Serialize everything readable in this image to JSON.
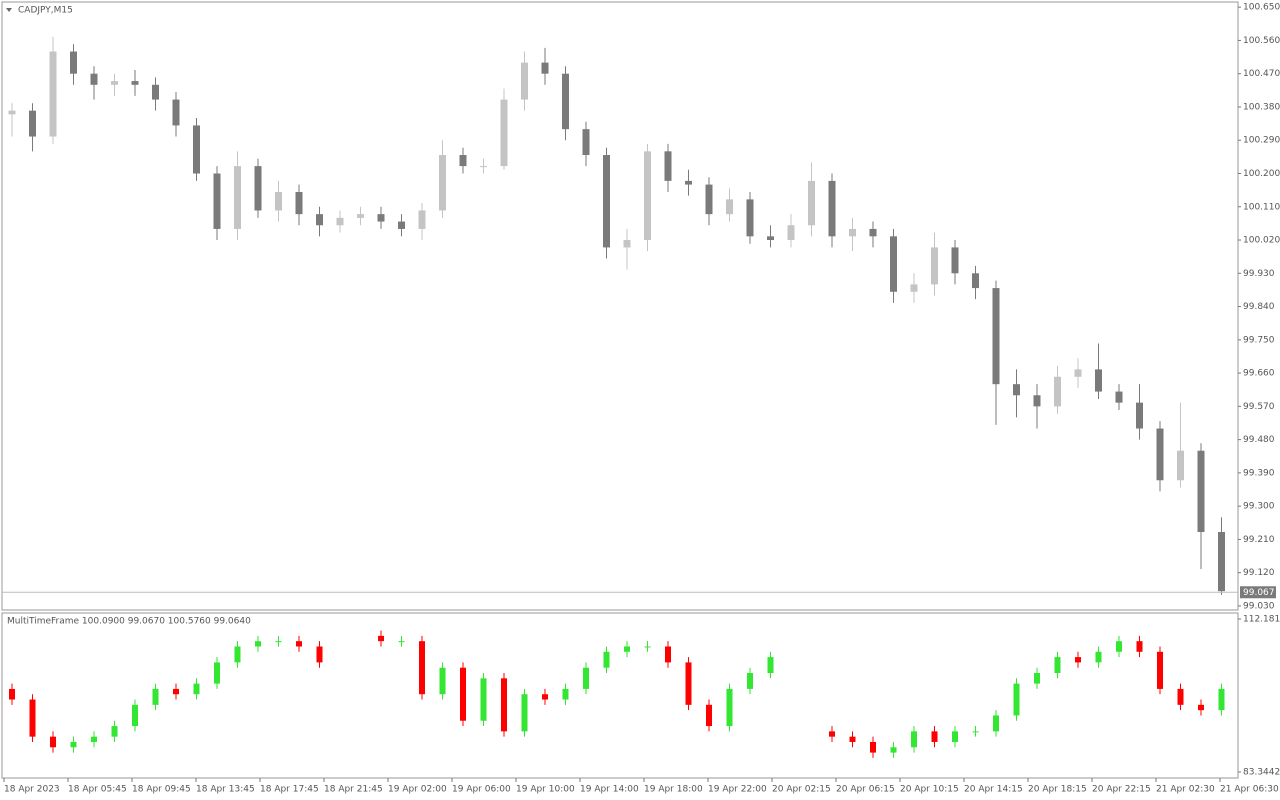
{
  "chart_data": [
    {
      "type": "candlestick",
      "title": "CADJPY,M15",
      "open": [
        100.36,
        100.37,
        100.3,
        100.53,
        100.47,
        100.44,
        100.45,
        100.44,
        100.4,
        100.33,
        100.2,
        100.05,
        100.22,
        100.1,
        100.15,
        100.09,
        100.06,
        100.08,
        100.09,
        100.07,
        100.05,
        100.1,
        100.25,
        100.22,
        100.22,
        100.4,
        100.5,
        100.47,
        100.32,
        100.25,
        100.0,
        100.02,
        100.26,
        100.18,
        100.17,
        100.09,
        100.13,
        100.03,
        100.02,
        100.06,
        100.18,
        100.03,
        100.05,
        100.03,
        99.88,
        99.9,
        100.0,
        99.93,
        99.89,
        99.63,
        99.6,
        99.57,
        99.65,
        99.67,
        99.61,
        99.58,
        99.51,
        99.37,
        99.45,
        99.23
      ],
      "high": [
        100.39,
        100.39,
        100.57,
        100.55,
        100.49,
        100.47,
        100.48,
        100.46,
        100.42,
        100.35,
        100.22,
        100.26,
        100.24,
        100.18,
        100.17,
        100.11,
        100.1,
        100.11,
        100.11,
        100.09,
        100.12,
        100.29,
        100.27,
        100.24,
        100.43,
        100.53,
        100.54,
        100.49,
        100.34,
        100.27,
        100.05,
        100.28,
        100.28,
        100.21,
        100.19,
        100.16,
        100.15,
        100.06,
        100.09,
        100.23,
        100.2,
        100.08,
        100.07,
        100.05,
        99.93,
        100.04,
        100.02,
        99.95,
        99.91,
        99.67,
        99.63,
        99.68,
        99.7,
        99.74,
        99.63,
        99.63,
        99.53,
        99.58,
        99.47,
        99.27
      ],
      "low": [
        100.3,
        100.26,
        100.28,
        100.44,
        100.4,
        100.41,
        100.41,
        100.37,
        100.3,
        100.18,
        100.02,
        100.02,
        100.08,
        100.07,
        100.06,
        100.03,
        100.04,
        100.06,
        100.05,
        100.03,
        100.02,
        100.08,
        100.2,
        100.2,
        100.21,
        100.37,
        100.44,
        100.29,
        100.22,
        99.97,
        99.94,
        99.99,
        100.15,
        100.14,
        100.06,
        100.07,
        100.01,
        100.0,
        100.0,
        100.03,
        100.0,
        99.99,
        100.0,
        99.85,
        99.85,
        99.87,
        99.9,
        99.86,
        99.52,
        99.54,
        99.51,
        99.55,
        99.62,
        99.59,
        99.56,
        99.48,
        99.34,
        99.35,
        99.13,
        99.06
      ],
      "close": [
        100.37,
        100.3,
        100.53,
        100.47,
        100.44,
        100.45,
        100.44,
        100.4,
        100.33,
        100.2,
        100.05,
        100.22,
        100.1,
        100.15,
        100.09,
        100.06,
        100.08,
        100.09,
        100.07,
        100.05,
        100.1,
        100.25,
        100.22,
        100.22,
        100.4,
        100.5,
        100.47,
        100.32,
        100.25,
        100.0,
        100.02,
        100.26,
        100.18,
        100.17,
        100.09,
        100.13,
        100.03,
        100.02,
        100.06,
        100.18,
        100.03,
        100.05,
        100.03,
        99.88,
        99.9,
        100.0,
        99.93,
        99.89,
        99.63,
        99.6,
        99.57,
        99.65,
        99.67,
        99.61,
        99.58,
        99.51,
        99.37,
        99.45,
        99.23,
        99.07
      ],
      "up_color": "#c4c4c4",
      "down_color": "#7a7a7a",
      "ylim": [
        99.019,
        100.664
      ],
      "yticks": [
        {
          "value": 100.65,
          "label": "100.650"
        },
        {
          "value": 100.56,
          "label": "100.560"
        },
        {
          "value": 100.47,
          "label": "100.470"
        },
        {
          "value": 100.38,
          "label": "100.380"
        },
        {
          "value": 100.29,
          "label": "100.290"
        },
        {
          "value": 100.2,
          "label": "100.200"
        },
        {
          "value": 100.11,
          "label": "100.110"
        },
        {
          "value": 100.02,
          "label": "100.020"
        },
        {
          "value": 99.93,
          "label": "99.930"
        },
        {
          "value": 99.84,
          "label": "99.840"
        },
        {
          "value": 99.75,
          "label": "99.750"
        },
        {
          "value": 99.66,
          "label": "99.660"
        },
        {
          "value": 99.57,
          "label": "99.570"
        },
        {
          "value": 99.48,
          "label": "99.480"
        },
        {
          "value": 99.39,
          "label": "99.390"
        },
        {
          "value": 99.3,
          "label": "99.300"
        },
        {
          "value": 99.21,
          "label": "99.210"
        },
        {
          "value": 99.12,
          "label": "99.120"
        },
        {
          "value": 99.03,
          "label": "99.030"
        }
      ],
      "current_price": 99.067,
      "time_labels": [
        "18 Apr 2023",
        "18 Apr 05:45",
        "18 Apr 09:45",
        "18 Apr 13:45",
        "18 Apr 17:45",
        "18 Apr 21:45",
        "19 Apr 02:00",
        "19 Apr 06:00",
        "19 Apr 10:00",
        "19 Apr 14:00",
        "19 Apr 18:00",
        "19 Apr 22:00",
        "20 Apr 02:15",
        "20 Apr 06:15",
        "20 Apr 10:15",
        "20 Apr 14:15",
        "20 Apr 18:15",
        "20 Apr 22:15",
        "21 Apr 02:30",
        "21 Apr 06:30"
      ]
    },
    {
      "type": "candlestick",
      "title": "MultiTimeFrame 100.0900 99.0670 100.5760 99.0640",
      "open": [
        99,
        97,
        90,
        88,
        89,
        90,
        92,
        96,
        99,
        98,
        100,
        104,
        107,
        108,
        108,
        107,
        null,
        null,
        109,
        108,
        108,
        98,
        103,
        93,
        101,
        91,
        98,
        97,
        99,
        103,
        106,
        107,
        107,
        104,
        96,
        92,
        99,
        102,
        null,
        null,
        91,
        90,
        89,
        87,
        88,
        91,
        89,
        91,
        91,
        94,
        100,
        102,
        105,
        104,
        106,
        108,
        106,
        99,
        96,
        95
      ],
      "high": [
        100,
        98,
        91,
        90,
        91,
        93,
        97,
        100,
        100,
        101,
        105,
        108,
        109,
        109,
        109,
        108,
        null,
        null,
        110,
        109,
        109,
        104,
        104,
        102,
        102,
        99,
        99,
        100,
        104,
        107,
        108,
        108,
        108,
        105,
        97,
        100,
        103,
        106,
        null,
        null,
        92,
        91,
        90,
        89,
        92,
        92,
        92,
        92,
        95,
        101,
        103,
        106,
        106,
        107,
        109,
        109,
        107,
        100,
        97,
        100
      ],
      "low": [
        96,
        89,
        87,
        87,
        88,
        89,
        91,
        95,
        97,
        97,
        99,
        103,
        106,
        107,
        106,
        103,
        null,
        null,
        107,
        107,
        97,
        97,
        92,
        92,
        90,
        90,
        96,
        96,
        98,
        102,
        105,
        106,
        103,
        95,
        91,
        91,
        98,
        101,
        null,
        null,
        89,
        88,
        86,
        86,
        87,
        88,
        88,
        90,
        90,
        93,
        99,
        101,
        103,
        103,
        105,
        105,
        98,
        95,
        94,
        94
      ],
      "close": [
        97,
        90,
        88,
        89,
        90,
        92,
        96,
        99,
        98,
        100,
        104,
        107,
        108,
        108,
        107,
        104,
        null,
        null,
        108,
        108,
        98,
        103,
        93,
        101,
        91,
        98,
        97,
        99,
        103,
        106,
        107,
        107,
        104,
        96,
        92,
        99,
        102,
        105,
        null,
        null,
        90,
        89,
        87,
        88,
        91,
        89,
        91,
        91,
        94,
        100,
        102,
        105,
        104,
        106,
        108,
        106,
        99,
        96,
        95,
        99
      ],
      "up_color": "#32e632",
      "down_color": "#ff0000",
      "ylim": [
        82.21,
        113.31
      ],
      "yticks": [
        112.1818,
        83.3442
      ]
    }
  ]
}
